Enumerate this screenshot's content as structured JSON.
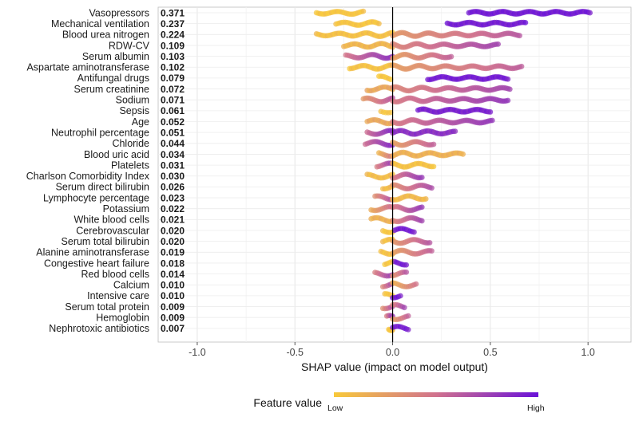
{
  "chart_data": {
    "type": "scatter",
    "subtype": "shap-beeswarm",
    "xlabel": "SHAP value (impact on model output)",
    "xlim": [
      -1.2,
      1.22
    ],
    "xticks": [
      -1.0,
      -0.5,
      0.0,
      0.5,
      1.0
    ],
    "xtick_labels": [
      "-1.0",
      "-0.5",
      "0.0",
      "0.5",
      "1.0"
    ],
    "legend": {
      "title": "Feature value",
      "low": "Low",
      "high": "High",
      "position": "bottom"
    },
    "colors": {
      "low": "#f8c93a",
      "mid": "#d0728e",
      "high": "#6a12d8"
    },
    "features": [
      {
        "name": "Vasopressors",
        "importance": "0.371",
        "segments": [
          {
            "from": -0.39,
            "to": -0.15,
            "v": 0.02
          },
          {
            "from": 0.39,
            "to": 1.01,
            "v": 0.97
          }
        ]
      },
      {
        "name": "Mechanical ventilation",
        "importance": "0.237",
        "segments": [
          {
            "from": -0.29,
            "to": -0.07,
            "v": 0.03
          },
          {
            "from": 0.28,
            "to": 0.68,
            "v": 0.95
          }
        ]
      },
      {
        "name": "Blood urea nitrogen",
        "importance": "0.224",
        "segments": [
          {
            "from": -0.39,
            "to": 0.0,
            "v": 0.06
          },
          {
            "from": 0.0,
            "to": 0.65,
            "v": 0.45
          }
        ]
      },
      {
        "name": "RDW-CV",
        "importance": "0.109",
        "segments": [
          {
            "from": -0.25,
            "to": 0.0,
            "v": 0.12
          },
          {
            "from": 0.0,
            "to": 0.54,
            "v": 0.55
          }
        ]
      },
      {
        "name": "Serum albumin",
        "importance": "0.103",
        "segments": [
          {
            "from": -0.24,
            "to": 0.0,
            "v": 0.65
          },
          {
            "from": 0.0,
            "to": 0.3,
            "v": 0.4
          }
        ]
      },
      {
        "name": "Aspartate aminotransferase",
        "importance": "0.102",
        "segments": [
          {
            "from": -0.22,
            "to": 0.0,
            "v": 0.05
          },
          {
            "from": 0.0,
            "to": 0.66,
            "v": 0.42
          }
        ]
      },
      {
        "name": "Antifungal drugs",
        "importance": "0.079",
        "segments": [
          {
            "from": -0.07,
            "to": -0.01,
            "v": 0.02
          },
          {
            "from": 0.18,
            "to": 0.59,
            "v": 0.96
          }
        ]
      },
      {
        "name": "Serum creatinine",
        "importance": "0.072",
        "segments": [
          {
            "from": -0.13,
            "to": 0.0,
            "v": 0.2
          },
          {
            "from": 0.0,
            "to": 0.6,
            "v": 0.55
          }
        ]
      },
      {
        "name": "Sodium",
        "importance": "0.071",
        "segments": [
          {
            "from": -0.15,
            "to": 0.0,
            "v": 0.45
          },
          {
            "from": 0.0,
            "to": 0.59,
            "v": 0.62
          }
        ]
      },
      {
        "name": "Sepsis",
        "importance": "0.061",
        "segments": [
          {
            "from": -0.06,
            "to": -0.01,
            "v": 0.02
          },
          {
            "from": 0.13,
            "to": 0.5,
            "v": 0.93
          }
        ]
      },
      {
        "name": "Age",
        "importance": "0.052",
        "segments": [
          {
            "from": -0.13,
            "to": 0.0,
            "v": 0.2
          },
          {
            "from": 0.0,
            "to": 0.51,
            "v": 0.62
          }
        ]
      },
      {
        "name": "Neutrophil percentage",
        "importance": "0.051",
        "segments": [
          {
            "from": -0.13,
            "to": 0.0,
            "v": 0.7
          },
          {
            "from": 0.0,
            "to": 0.32,
            "v": 0.85
          }
        ]
      },
      {
        "name": "Chloride",
        "importance": "0.044",
        "segments": [
          {
            "from": -0.14,
            "to": 0.0,
            "v": 0.7
          },
          {
            "from": 0.0,
            "to": 0.21,
            "v": 0.4
          }
        ]
      },
      {
        "name": "Blood uric acid",
        "importance": "0.034",
        "segments": [
          {
            "from": -0.07,
            "to": 0.0,
            "v": 0.3
          },
          {
            "from": 0.0,
            "to": 0.36,
            "v": 0.15
          }
        ]
      },
      {
        "name": "Platelets",
        "importance": "0.031",
        "segments": [
          {
            "from": -0.08,
            "to": 0.0,
            "v": 0.6
          },
          {
            "from": 0.0,
            "to": 0.21,
            "v": 0.05
          }
        ]
      },
      {
        "name": "Charlson Comorbidity Index",
        "importance": "0.030",
        "segments": [
          {
            "from": -0.13,
            "to": 0.0,
            "v": 0.08
          },
          {
            "from": 0.0,
            "to": 0.15,
            "v": 0.6
          }
        ]
      },
      {
        "name": "Serum direct bilirubin",
        "importance": "0.026",
        "segments": [
          {
            "from": -0.05,
            "to": 0.0,
            "v": 0.08
          },
          {
            "from": 0.0,
            "to": 0.2,
            "v": 0.5
          }
        ]
      },
      {
        "name": "Lymphocyte percentage",
        "importance": "0.023",
        "segments": [
          {
            "from": -0.09,
            "to": 0.0,
            "v": 0.5
          },
          {
            "from": 0.0,
            "to": 0.17,
            "v": 0.1
          }
        ]
      },
      {
        "name": "Potassium",
        "importance": "0.022",
        "segments": [
          {
            "from": -0.11,
            "to": 0.0,
            "v": 0.35
          },
          {
            "from": 0.0,
            "to": 0.15,
            "v": 0.6
          }
        ]
      },
      {
        "name": "White blood cells",
        "importance": "0.021",
        "segments": [
          {
            "from": -0.11,
            "to": 0.0,
            "v": 0.15
          },
          {
            "from": 0.0,
            "to": 0.15,
            "v": 0.55
          }
        ]
      },
      {
        "name": "Cerebrovascular",
        "importance": "0.020",
        "segments": [
          {
            "from": -0.05,
            "to": 0.0,
            "v": 0.02
          },
          {
            "from": 0.01,
            "to": 0.11,
            "v": 0.96
          }
        ]
      },
      {
        "name": "Serum total bilirubin",
        "importance": "0.020",
        "segments": [
          {
            "from": -0.05,
            "to": 0.0,
            "v": 0.06
          },
          {
            "from": 0.0,
            "to": 0.19,
            "v": 0.45
          }
        ]
      },
      {
        "name": "Alanine aminotransferase",
        "importance": "0.019",
        "segments": [
          {
            "from": -0.06,
            "to": 0.0,
            "v": 0.05
          },
          {
            "from": 0.0,
            "to": 0.2,
            "v": 0.4
          }
        ]
      },
      {
        "name": "Congestive heart failure",
        "importance": "0.018",
        "segments": [
          {
            "from": -0.04,
            "to": 0.0,
            "v": 0.02
          },
          {
            "from": 0.01,
            "to": 0.07,
            "v": 0.96
          }
        ]
      },
      {
        "name": "Red blood cells",
        "importance": "0.014",
        "segments": [
          {
            "from": -0.09,
            "to": 0.0,
            "v": 0.6
          },
          {
            "from": 0.0,
            "to": 0.07,
            "v": 0.45
          }
        ]
      },
      {
        "name": "Calcium",
        "importance": "0.010",
        "segments": [
          {
            "from": -0.05,
            "to": 0.0,
            "v": 0.55
          },
          {
            "from": 0.0,
            "to": 0.12,
            "v": 0.3
          }
        ]
      },
      {
        "name": "Intensive care",
        "importance": "0.010",
        "segments": [
          {
            "from": -0.04,
            "to": 0.0,
            "v": 0.02
          },
          {
            "from": 0.0,
            "to": 0.04,
            "v": 0.96
          }
        ]
      },
      {
        "name": "Serum total protein",
        "importance": "0.009",
        "segments": [
          {
            "from": -0.05,
            "to": 0.0,
            "v": 0.5
          },
          {
            "from": 0.0,
            "to": 0.06,
            "v": 0.55
          }
        ]
      },
      {
        "name": "Hemoglobin",
        "importance": "0.009",
        "segments": [
          {
            "from": -0.03,
            "to": 0.0,
            "v": 0.6
          },
          {
            "from": 0.0,
            "to": 0.08,
            "v": 0.4
          }
        ]
      },
      {
        "name": "Nephrotoxic antibiotics",
        "importance": "0.007",
        "segments": [
          {
            "from": -0.02,
            "to": 0.0,
            "v": 0.02
          },
          {
            "from": 0.0,
            "to": 0.08,
            "v": 0.95
          }
        ]
      }
    ]
  }
}
